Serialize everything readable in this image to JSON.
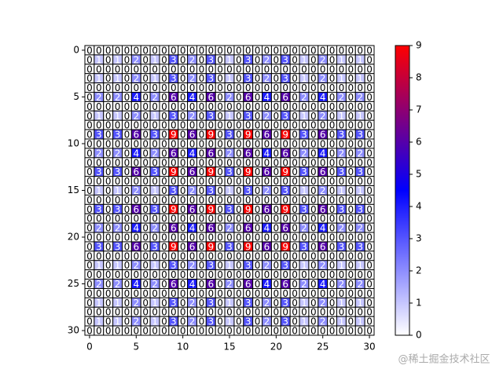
{
  "chart_data": {
    "type": "heatmap",
    "z": [
      [
        0,
        0,
        0,
        0,
        0,
        0,
        0,
        0,
        0,
        0,
        0,
        0,
        0,
        0,
        0,
        0,
        0,
        0,
        0,
        0,
        0,
        0,
        0,
        0,
        0,
        0,
        0,
        0,
        0,
        0,
        0
      ],
      [
        0,
        1,
        0,
        1,
        0,
        2,
        0,
        1,
        0,
        3,
        0,
        2,
        0,
        3,
        0,
        1,
        0,
        3,
        0,
        2,
        0,
        3,
        0,
        1,
        0,
        2,
        0,
        1,
        0,
        1,
        0
      ],
      [
        0,
        0,
        0,
        0,
        0,
        0,
        0,
        0,
        0,
        0,
        0,
        0,
        0,
        0,
        0,
        0,
        0,
        0,
        0,
        0,
        0,
        0,
        0,
        0,
        0,
        0,
        0,
        0,
        0,
        0,
        0
      ],
      [
        0,
        1,
        0,
        1,
        0,
        2,
        0,
        1,
        0,
        3,
        0,
        2,
        0,
        3,
        0,
        1,
        0,
        3,
        0,
        2,
        0,
        3,
        0,
        1,
        0,
        2,
        0,
        1,
        0,
        1,
        0
      ],
      [
        0,
        0,
        0,
        0,
        0,
        0,
        0,
        0,
        0,
        0,
        0,
        0,
        0,
        0,
        0,
        0,
        0,
        0,
        0,
        0,
        0,
        0,
        0,
        0,
        0,
        0,
        0,
        0,
        0,
        0,
        0
      ],
      [
        0,
        2,
        0,
        2,
        0,
        4,
        0,
        2,
        0,
        6,
        0,
        4,
        0,
        6,
        0,
        2,
        0,
        6,
        0,
        4,
        0,
        6,
        0,
        2,
        0,
        4,
        0,
        2,
        0,
        2,
        0
      ],
      [
        0,
        0,
        0,
        0,
        0,
        0,
        0,
        0,
        0,
        0,
        0,
        0,
        0,
        0,
        0,
        0,
        0,
        0,
        0,
        0,
        0,
        0,
        0,
        0,
        0,
        0,
        0,
        0,
        0,
        0,
        0
      ],
      [
        0,
        1,
        0,
        1,
        0,
        2,
        0,
        1,
        0,
        3,
        0,
        2,
        0,
        3,
        0,
        1,
        0,
        3,
        0,
        2,
        0,
        3,
        0,
        1,
        0,
        2,
        0,
        1,
        0,
        1,
        0
      ],
      [
        0,
        0,
        0,
        0,
        0,
        0,
        0,
        0,
        0,
        0,
        0,
        0,
        0,
        0,
        0,
        0,
        0,
        0,
        0,
        0,
        0,
        0,
        0,
        0,
        0,
        0,
        0,
        0,
        0,
        0,
        0
      ],
      [
        0,
        3,
        0,
        3,
        0,
        6,
        0,
        3,
        0,
        9,
        0,
        6,
        0,
        9,
        0,
        3,
        0,
        9,
        0,
        6,
        0,
        9,
        0,
        3,
        0,
        6,
        0,
        3,
        0,
        3,
        0
      ],
      [
        0,
        0,
        0,
        0,
        0,
        0,
        0,
        0,
        0,
        0,
        0,
        0,
        0,
        0,
        0,
        0,
        0,
        0,
        0,
        0,
        0,
        0,
        0,
        0,
        0,
        0,
        0,
        0,
        0,
        0,
        0
      ],
      [
        0,
        2,
        0,
        2,
        0,
        4,
        0,
        2,
        0,
        6,
        0,
        4,
        0,
        6,
        0,
        2,
        0,
        6,
        0,
        4,
        0,
        6,
        0,
        2,
        0,
        4,
        0,
        2,
        0,
        2,
        0
      ],
      [
        0,
        0,
        0,
        0,
        0,
        0,
        0,
        0,
        0,
        0,
        0,
        0,
        0,
        0,
        0,
        0,
        0,
        0,
        0,
        0,
        0,
        0,
        0,
        0,
        0,
        0,
        0,
        0,
        0,
        0,
        0
      ],
      [
        0,
        3,
        0,
        3,
        0,
        6,
        0,
        3,
        0,
        9,
        0,
        6,
        0,
        9,
        0,
        3,
        0,
        9,
        0,
        6,
        0,
        9,
        0,
        3,
        0,
        6,
        0,
        3,
        0,
        3,
        0
      ],
      [
        0,
        0,
        0,
        0,
        0,
        0,
        0,
        0,
        0,
        0,
        0,
        0,
        0,
        0,
        0,
        0,
        0,
        0,
        0,
        0,
        0,
        0,
        0,
        0,
        0,
        0,
        0,
        0,
        0,
        0,
        0
      ],
      [
        0,
        1,
        0,
        1,
        0,
        2,
        0,
        1,
        0,
        3,
        0,
        2,
        0,
        3,
        0,
        1,
        0,
        3,
        0,
        2,
        0,
        3,
        0,
        1,
        0,
        2,
        0,
        1,
        0,
        1,
        0
      ],
      [
        0,
        0,
        0,
        0,
        0,
        0,
        0,
        0,
        0,
        0,
        0,
        0,
        0,
        0,
        0,
        0,
        0,
        0,
        0,
        0,
        0,
        0,
        0,
        0,
        0,
        0,
        0,
        0,
        0,
        0,
        0
      ],
      [
        0,
        3,
        0,
        3,
        0,
        6,
        0,
        3,
        0,
        9,
        0,
        6,
        0,
        9,
        0,
        3,
        0,
        9,
        0,
        6,
        0,
        9,
        0,
        3,
        0,
        6,
        0,
        3,
        0,
        3,
        0
      ],
      [
        0,
        0,
        0,
        0,
        0,
        0,
        0,
        0,
        0,
        0,
        0,
        0,
        0,
        0,
        0,
        0,
        0,
        0,
        0,
        0,
        0,
        0,
        0,
        0,
        0,
        0,
        0,
        0,
        0,
        0,
        0
      ],
      [
        0,
        2,
        0,
        2,
        0,
        4,
        0,
        2,
        0,
        6,
        0,
        4,
        0,
        6,
        0,
        2,
        0,
        6,
        0,
        4,
        0,
        6,
        0,
        2,
        0,
        4,
        0,
        2,
        0,
        2,
        0
      ],
      [
        0,
        0,
        0,
        0,
        0,
        0,
        0,
        0,
        0,
        0,
        0,
        0,
        0,
        0,
        0,
        0,
        0,
        0,
        0,
        0,
        0,
        0,
        0,
        0,
        0,
        0,
        0,
        0,
        0,
        0,
        0
      ],
      [
        0,
        3,
        0,
        3,
        0,
        6,
        0,
        3,
        0,
        9,
        0,
        6,
        0,
        9,
        0,
        3,
        0,
        9,
        0,
        6,
        0,
        9,
        0,
        3,
        0,
        6,
        0,
        3,
        0,
        3,
        0
      ],
      [
        0,
        0,
        0,
        0,
        0,
        0,
        0,
        0,
        0,
        0,
        0,
        0,
        0,
        0,
        0,
        0,
        0,
        0,
        0,
        0,
        0,
        0,
        0,
        0,
        0,
        0,
        0,
        0,
        0,
        0,
        0
      ],
      [
        0,
        1,
        0,
        1,
        0,
        2,
        0,
        1,
        0,
        3,
        0,
        2,
        0,
        3,
        0,
        1,
        0,
        3,
        0,
        2,
        0,
        3,
        0,
        1,
        0,
        2,
        0,
        1,
        0,
        1,
        0
      ],
      [
        0,
        0,
        0,
        0,
        0,
        0,
        0,
        0,
        0,
        0,
        0,
        0,
        0,
        0,
        0,
        0,
        0,
        0,
        0,
        0,
        0,
        0,
        0,
        0,
        0,
        0,
        0,
        0,
        0,
        0,
        0
      ],
      [
        0,
        2,
        0,
        2,
        0,
        4,
        0,
        2,
        0,
        6,
        0,
        4,
        0,
        6,
        0,
        2,
        0,
        6,
        0,
        4,
        0,
        6,
        0,
        2,
        0,
        4,
        0,
        2,
        0,
        2,
        0
      ],
      [
        0,
        0,
        0,
        0,
        0,
        0,
        0,
        0,
        0,
        0,
        0,
        0,
        0,
        0,
        0,
        0,
        0,
        0,
        0,
        0,
        0,
        0,
        0,
        0,
        0,
        0,
        0,
        0,
        0,
        0,
        0
      ],
      [
        0,
        1,
        0,
        1,
        0,
        2,
        0,
        1,
        0,
        3,
        0,
        2,
        0,
        3,
        0,
        1,
        0,
        3,
        0,
        2,
        0,
        3,
        0,
        1,
        0,
        2,
        0,
        1,
        0,
        1,
        0
      ],
      [
        0,
        0,
        0,
        0,
        0,
        0,
        0,
        0,
        0,
        0,
        0,
        0,
        0,
        0,
        0,
        0,
        0,
        0,
        0,
        0,
        0,
        0,
        0,
        0,
        0,
        0,
        0,
        0,
        0,
        0,
        0
      ],
      [
        0,
        1,
        0,
        1,
        0,
        2,
        0,
        1,
        0,
        3,
        0,
        2,
        0,
        3,
        0,
        1,
        0,
        3,
        0,
        2,
        0,
        3,
        0,
        1,
        0,
        2,
        0,
        1,
        0,
        1,
        0
      ],
      [
        0,
        0,
        0,
        0,
        0,
        0,
        0,
        0,
        0,
        0,
        0,
        0,
        0,
        0,
        0,
        0,
        0,
        0,
        0,
        0,
        0,
        0,
        0,
        0,
        0,
        0,
        0,
        0,
        0,
        0,
        0
      ]
    ],
    "xlim": [
      -0.5,
      30.5
    ],
    "ylim": [
      30.5,
      -0.5
    ],
    "xticks": [
      0,
      5,
      10,
      15,
      20,
      25,
      30
    ],
    "yticks": [
      0,
      5,
      10,
      15,
      20,
      25,
      30
    ],
    "colormap": [
      "#ffffff",
      "#0000ff",
      "#ff0000"
    ],
    "clim": [
      0,
      9
    ],
    "colorbar_ticks": [
      0,
      1,
      2,
      3,
      4,
      5,
      6,
      7,
      8,
      9
    ],
    "zero_text_color": "#000000",
    "text_color": "#ffffff",
    "cell_edge_color": "#000000",
    "watermark": "@稀土掘金技术社区"
  }
}
